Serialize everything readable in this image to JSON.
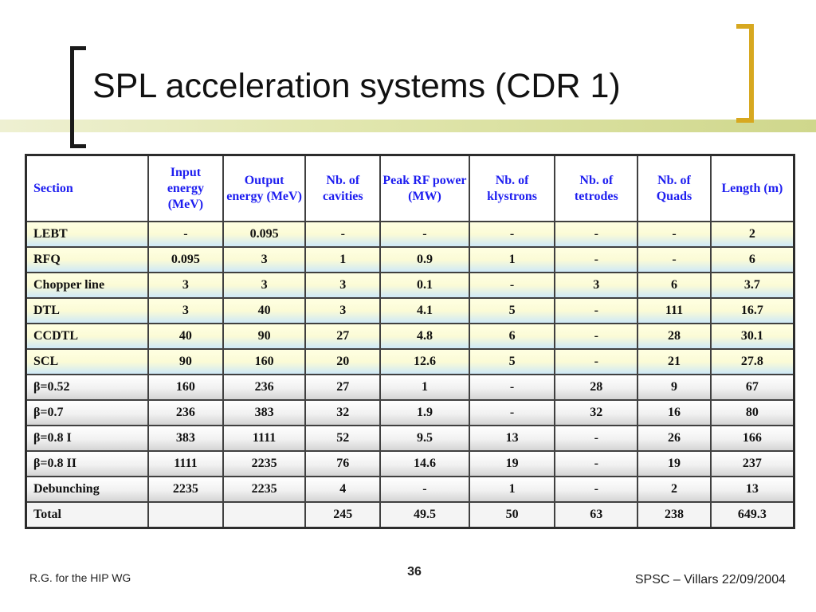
{
  "slide": {
    "title": "SPL acceleration systems (CDR 1)",
    "footer_left": "R.G. for the HIP WG",
    "page_number": "36",
    "footer_right": "SPSC – Villars 22/09/2004",
    "colors": {
      "header_text": "#1e1ef0",
      "accent_bracket": "#d7a820",
      "top_bar": "#dfe4ac"
    }
  },
  "table": {
    "headers": [
      "Section",
      "Input energy (MeV)",
      "Output energy (MeV)",
      "Nb. of cavities",
      "Peak RF power (MW)",
      "Nb. of klystrons",
      "Nb. of tetrodes",
      "Nb. of Quads",
      "Length (m)"
    ],
    "rows": [
      [
        "LEBT",
        "-",
        "0.095",
        "-",
        "-",
        "-",
        "-",
        "-",
        "2"
      ],
      [
        "RFQ",
        "0.095",
        "3",
        "1",
        "0.9",
        "1",
        "-",
        "-",
        "6"
      ],
      [
        "Chopper line",
        "3",
        "3",
        "3",
        "0.1",
        "-",
        "3",
        "6",
        "3.7"
      ],
      [
        "DTL",
        "3",
        "40",
        "3",
        "4.1",
        "5",
        "-",
        "111",
        "16.7"
      ],
      [
        "CCDTL",
        "40",
        "90",
        "27",
        "4.8",
        "6",
        "-",
        "28",
        "30.1"
      ],
      [
        "SCL",
        "90",
        "160",
        "20",
        "12.6",
        "5",
        "-",
        "21",
        "27.8"
      ],
      [
        "β=0.52",
        "160",
        "236",
        "27",
        "1",
        "-",
        "28",
        "9",
        "67"
      ],
      [
        "β=0.7",
        "236",
        "383",
        "32",
        "1.9",
        "-",
        "32",
        "16",
        "80"
      ],
      [
        "β=0.8 I",
        "383",
        "1111",
        "52",
        "9.5",
        "13",
        "-",
        "26",
        "166"
      ],
      [
        "β=0.8 II",
        "1111",
        "2235",
        "76",
        "14.6",
        "19",
        "-",
        "19",
        "237"
      ],
      [
        "Debunching",
        "2235",
        "2235",
        "4",
        "-",
        "1",
        "-",
        "2",
        "13"
      ]
    ],
    "total": [
      "Total",
      "",
      "",
      "245",
      "49.5",
      "50",
      "63",
      "238",
      "649.3"
    ]
  }
}
